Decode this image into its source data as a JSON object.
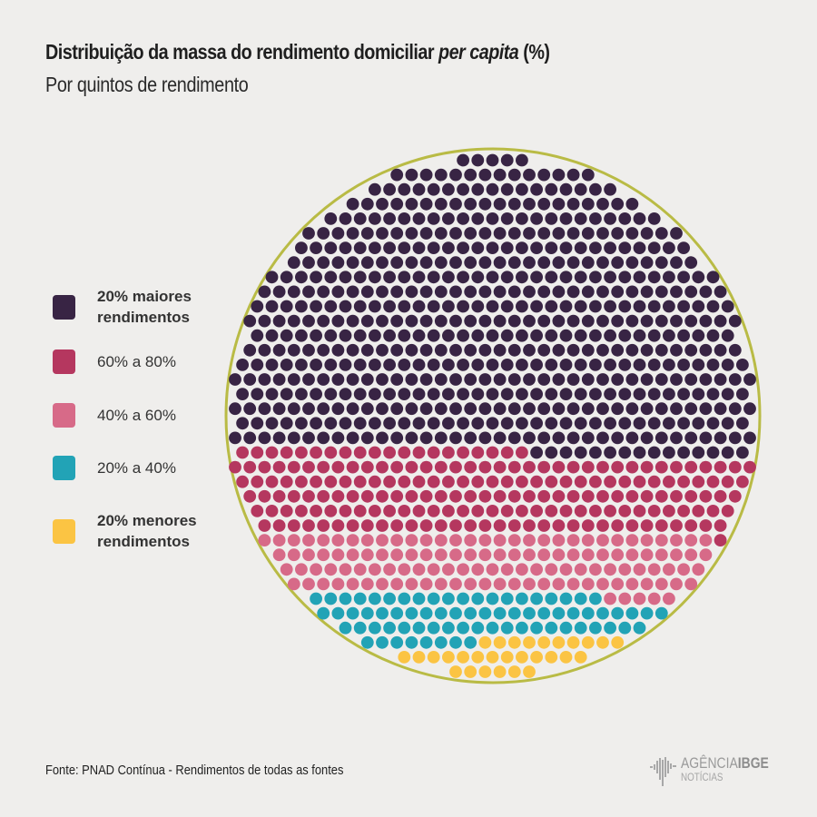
{
  "header": {
    "title_main": "Distribuição da massa do rendimento domiciliar ",
    "title_italic": "per capita",
    "title_suffix": " (%)",
    "subtitle": "Por quintos de rendimento"
  },
  "legend": [
    {
      "line1": "20% maiores",
      "line2": "rendimentos",
      "bold": true,
      "color": "#382444"
    },
    {
      "line1": "60% a 80%",
      "line2": "",
      "bold": false,
      "color": "#b5375f"
    },
    {
      "line1": "40% a 60%",
      "line2": "",
      "bold": false,
      "color": "#d76a88"
    },
    {
      "line1": "20% a 40%",
      "line2": "",
      "bold": false,
      "color": "#22a3b6"
    },
    {
      "line1": "20% menores",
      "line2": "rendimentos",
      "bold": true,
      "color": "#fbc443"
    }
  ],
  "footer": {
    "source": "Fonte: PNAD Contínua - Rendimentos de todas as fontes",
    "logo_top_light": "AGÊNCIA",
    "logo_top_bold": "IBGE",
    "logo_bottom": "NOTÍCIAS"
  },
  "chart_data": {
    "type": "dot-matrix",
    "title": "Distribuição da massa do rendimento domiciliar per capita (%)",
    "subtitle": "Por quintos de rendimento",
    "unit": "dots (≈0.1% each)",
    "categories": [
      "20% maiores rendimentos",
      "60% a 80%",
      "40% a 60%",
      "20% a 40%",
      "20% menores rendimentos"
    ],
    "colors": [
      "#382444",
      "#b5375f",
      "#d76a88",
      "#22a3b6",
      "#fbc443"
    ],
    "dot_counts": [
      585,
      191,
      123,
      73,
      29
    ],
    "approx_percent": [
      58.5,
      19.1,
      12.3,
      7.3,
      2.9
    ],
    "outline_color": "#b9bb45",
    "rows": [
      [
        [
          0,
          5
        ]
      ],
      [
        [
          0,
          14
        ]
      ],
      [
        [
          0,
          17
        ]
      ],
      [
        [
          0,
          20
        ]
      ],
      [
        [
          0,
          23
        ]
      ],
      [
        [
          0,
          26
        ]
      ],
      [
        [
          0,
          27
        ]
      ],
      [
        [
          0,
          28
        ]
      ],
      [
        [
          0,
          31
        ]
      ],
      [
        [
          0,
          32
        ]
      ],
      [
        [
          0,
          33
        ]
      ],
      [
        [
          0,
          34
        ]
      ],
      [
        [
          0,
          33
        ]
      ],
      [
        [
          0,
          34
        ]
      ],
      [
        [
          0,
          35
        ]
      ],
      [
        [
          0,
          36
        ]
      ],
      [
        [
          0,
          35
        ]
      ],
      [
        [
          0,
          36
        ]
      ],
      [
        [
          0,
          35
        ]
      ],
      [
        [
          0,
          36
        ]
      ],
      [
        [
          1,
          20
        ],
        [
          0,
          15
        ]
      ],
      [
        [
          1,
          36
        ]
      ],
      [
        [
          1,
          35
        ]
      ],
      [
        [
          1,
          34
        ]
      ],
      [
        [
          1,
          33
        ]
      ],
      [
        [
          1,
          32
        ]
      ],
      [
        [
          2,
          31
        ],
        [
          1,
          1
        ]
      ],
      [
        [
          2,
          30
        ]
      ],
      [
        [
          2,
          29
        ]
      ],
      [
        [
          2,
          28
        ]
      ],
      [
        [
          3,
          20
        ],
        [
          2,
          5
        ]
      ],
      [
        [
          3,
          24
        ]
      ],
      [
        [
          3,
          21
        ]
      ],
      [
        [
          3,
          8
        ],
        [
          4,
          10
        ]
      ],
      [
        [
          4,
          13
        ]
      ],
      [
        [
          4,
          6
        ]
      ]
    ]
  }
}
